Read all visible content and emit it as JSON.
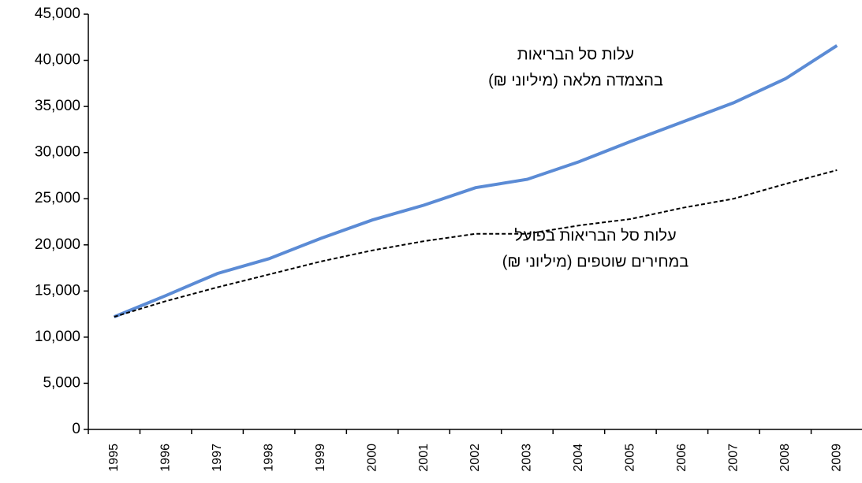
{
  "chart_data": {
    "type": "line",
    "categories": [
      "1995",
      "1996",
      "1997",
      "1998",
      "1999",
      "2000",
      "2001",
      "2002",
      "2003",
      "2004",
      "2005",
      "2006",
      "2007",
      "2008",
      "2009"
    ],
    "series": [
      {
        "label": [
          "עלות סל הבריאות",
          "בהצמדה מלאה (מיליוני ₪)"
        ],
        "color": "#5b8bd5",
        "dash": false,
        "values": [
          12200,
          14500,
          16900,
          18500,
          20700,
          22700,
          24300,
          26200,
          27100,
          29000,
          31200,
          33300,
          35400,
          38000,
          41600
        ]
      },
      {
        "label": [
          "עלות סל הבריאות בפועל",
          "במחירים שוטפים (מיליוני ₪)"
        ],
        "color": "#000000",
        "dash": true,
        "values": [
          12200,
          13900,
          15400,
          16800,
          18200,
          19400,
          20400,
          21200,
          21200,
          22100,
          22800,
          24000,
          25000,
          26600,
          28100
        ]
      }
    ],
    "ylim": [
      0,
      45000
    ],
    "yticks": [
      0,
      {
        "value": 5000,
        "label": "5,000"
      },
      {
        "value": 10000,
        "label": "10,000"
      },
      {
        "value": 15000,
        "label": "15,000"
      },
      {
        "value": 20000,
        "label": "20,000"
      },
      {
        "value": 25000,
        "label": "25,000"
      },
      {
        "value": 30000,
        "label": "30,000"
      },
      {
        "value": 35000,
        "label": "35,000"
      },
      {
        "value": 40000,
        "label": "40,000"
      },
      {
        "value": 45000,
        "label": "45,000"
      }
    ],
    "grid": false
  }
}
